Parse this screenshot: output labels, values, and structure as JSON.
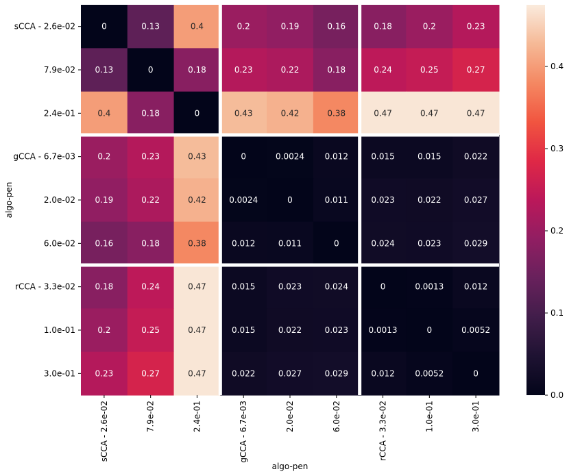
{
  "chart_data": {
    "type": "heatmap",
    "title": "",
    "xlabel": "algo-pen",
    "ylabel": "algo-pen",
    "x_categories": [
      "sCCA - 2.6e-02",
      "7.9e-02",
      "2.4e-01",
      "gCCA - 6.7e-03",
      "2.0e-02",
      "6.0e-02",
      "rCCA - 3.3e-02",
      "1.0e-01",
      "3.0e-01"
    ],
    "y_categories": [
      "sCCA - 2.6e-02",
      "7.9e-02",
      "2.4e-01",
      "gCCA - 6.7e-03",
      "2.0e-02",
      "6.0e-02",
      "rCCA - 3.3e-02",
      "1.0e-01",
      "3.0e-01"
    ],
    "group_separators_after": [
      2,
      5
    ],
    "values": [
      [
        0,
        0.13,
        0.4,
        0.2,
        0.19,
        0.16,
        0.18,
        0.2,
        0.23
      ],
      [
        0.13,
        0,
        0.18,
        0.23,
        0.22,
        0.18,
        0.24,
        0.25,
        0.27
      ],
      [
        0.4,
        0.18,
        0,
        0.43,
        0.42,
        0.38,
        0.47,
        0.47,
        0.47
      ],
      [
        0.2,
        0.23,
        0.43,
        0,
        0.0024,
        0.012,
        0.015,
        0.015,
        0.022
      ],
      [
        0.19,
        0.22,
        0.42,
        0.0024,
        0,
        0.011,
        0.023,
        0.022,
        0.027
      ],
      [
        0.16,
        0.18,
        0.38,
        0.012,
        0.011,
        0,
        0.024,
        0.023,
        0.029
      ],
      [
        0.18,
        0.24,
        0.47,
        0.015,
        0.023,
        0.024,
        0,
        0.0013,
        0.012
      ],
      [
        0.2,
        0.25,
        0.47,
        0.015,
        0.022,
        0.023,
        0.0013,
        0,
        0.0052
      ],
      [
        0.23,
        0.27,
        0.47,
        0.022,
        0.027,
        0.029,
        0.012,
        0.0052,
        0
      ]
    ],
    "color_range": [
      0,
      0.475
    ],
    "colormap": "rocket",
    "colorbar_ticks": [
      0.0,
      0.1,
      0.2,
      0.3,
      0.4
    ],
    "colorbar_tick_labels": [
      "0.0",
      "0.1",
      "0.2",
      "0.3",
      "0.4"
    ]
  }
}
